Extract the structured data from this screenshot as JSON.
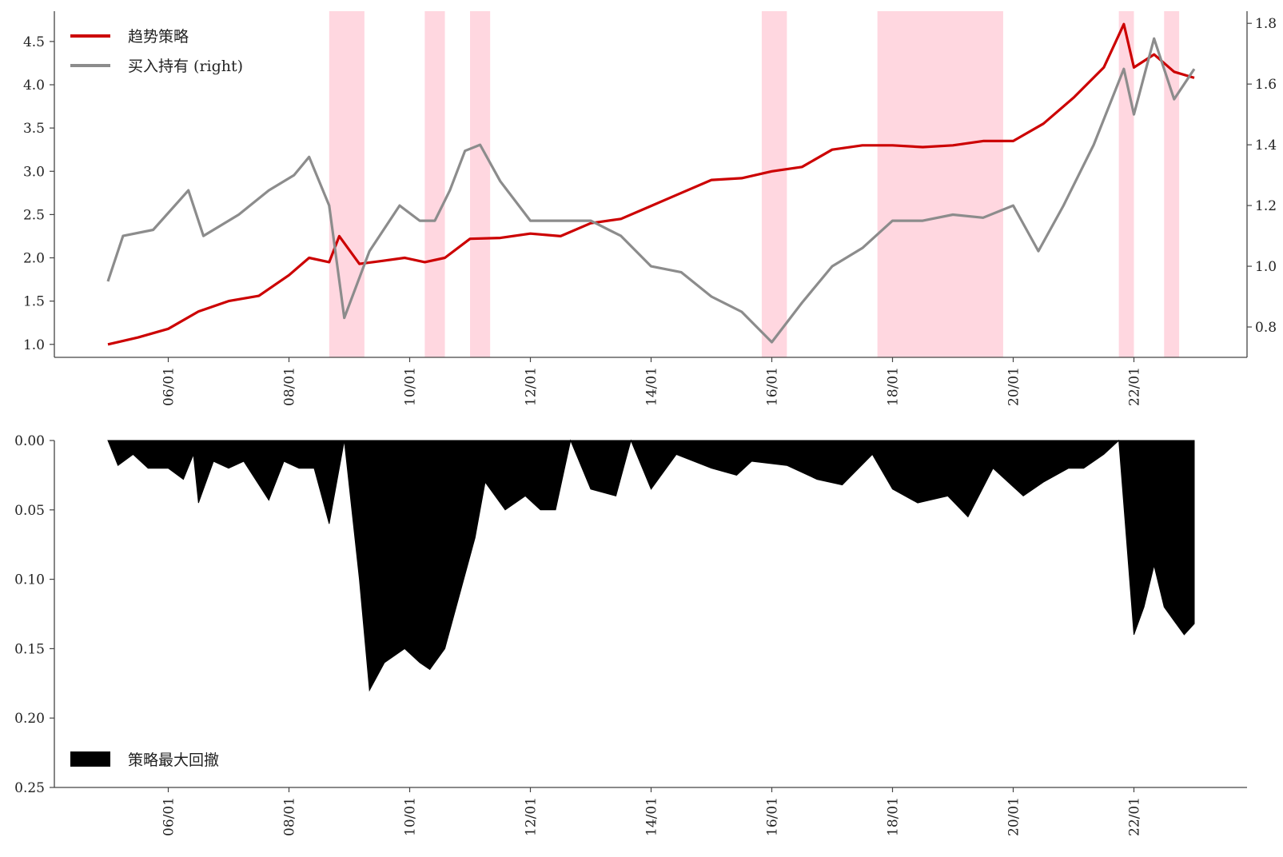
{
  "chart_data": [
    {
      "type": "line",
      "x_ticks": [
        "06/01",
        "08/01",
        "10/01",
        "12/01",
        "14/01",
        "16/01",
        "18/01",
        "20/01",
        "22/01"
      ],
      "yticks_left": [
        "1.0",
        "1.5",
        "2.0",
        "2.5",
        "3.0",
        "3.5",
        "4.0",
        "4.5"
      ],
      "yticks_right": [
        "0.8",
        "1.0",
        "1.2",
        "1.4",
        "1.6",
        "1.8"
      ],
      "ylim_left": [
        0.85,
        4.85
      ],
      "ylim_right": [
        0.7,
        1.84
      ],
      "legend_position": "top-left",
      "shaded_periods": [
        [
          "2008-09",
          "2009-04"
        ],
        [
          "2010-04",
          "2010-08"
        ],
        [
          "2011-01",
          "2011-05"
        ],
        [
          "2015-11",
          "2016-04"
        ],
        [
          "2017-10",
          "2019-11"
        ],
        [
          "2021-10",
          "2022-01"
        ],
        [
          "2022-07",
          "2022-10"
        ]
      ],
      "series": [
        {
          "name": "趋势策略",
          "axis": "left",
          "color": "#cc0000",
          "points": [
            [
              "2005-01",
              1.0
            ],
            [
              "2005-07",
              1.08
            ],
            [
              "2006-01",
              1.18
            ],
            [
              "2006-07",
              1.38
            ],
            [
              "2007-01",
              1.5
            ],
            [
              "2007-07",
              1.56
            ],
            [
              "2008-01",
              1.8
            ],
            [
              "2008-05",
              2.0
            ],
            [
              "2008-09",
              1.95
            ],
            [
              "2008-11",
              2.25
            ],
            [
              "2009-03",
              1.93
            ],
            [
              "2009-07",
              1.96
            ],
            [
              "2009-12",
              2.0
            ],
            [
              "2010-04",
              1.95
            ],
            [
              "2010-08",
              2.0
            ],
            [
              "2011-01",
              2.22
            ],
            [
              "2011-07",
              2.23
            ],
            [
              "2012-01",
              2.28
            ],
            [
              "2012-07",
              2.25
            ],
            [
              "2013-01",
              2.4
            ],
            [
              "2013-07",
              2.45
            ],
            [
              "2014-01",
              2.6
            ],
            [
              "2014-07",
              2.75
            ],
            [
              "2015-01",
              2.9
            ],
            [
              "2015-07",
              2.92
            ],
            [
              "2016-01",
              3.0
            ],
            [
              "2016-07",
              3.05
            ],
            [
              "2017-01",
              3.25
            ],
            [
              "2017-07",
              3.3
            ],
            [
              "2018-01",
              3.3
            ],
            [
              "2018-07",
              3.28
            ],
            [
              "2019-01",
              3.3
            ],
            [
              "2019-07",
              3.35
            ],
            [
              "2020-01",
              3.35
            ],
            [
              "2020-07",
              3.55
            ],
            [
              "2021-01",
              3.85
            ],
            [
              "2021-07",
              4.2
            ],
            [
              "2021-11",
              4.7
            ],
            [
              "2022-01",
              4.2
            ],
            [
              "2022-05",
              4.35
            ],
            [
              "2022-09",
              4.15
            ],
            [
              "2023-01",
              4.08
            ]
          ]
        },
        {
          "name": "买入持有 (right)",
          "axis": "right",
          "color": "#8c8c8c",
          "points": [
            [
              "2005-01",
              0.95
            ],
            [
              "2005-04",
              1.1
            ],
            [
              "2005-10",
              1.12
            ],
            [
              "2006-05",
              1.25
            ],
            [
              "2006-08",
              1.1
            ],
            [
              "2007-03",
              1.17
            ],
            [
              "2007-09",
              1.25
            ],
            [
              "2008-02",
              1.3
            ],
            [
              "2008-05",
              1.36
            ],
            [
              "2008-09",
              1.2
            ],
            [
              "2008-12",
              0.83
            ],
            [
              "2009-05",
              1.05
            ],
            [
              "2009-11",
              1.2
            ],
            [
              "2010-03",
              1.15
            ],
            [
              "2010-06",
              1.15
            ],
            [
              "2010-09",
              1.25
            ],
            [
              "2010-12",
              1.38
            ],
            [
              "2011-03",
              1.4
            ],
            [
              "2011-07",
              1.28
            ],
            [
              "2012-01",
              1.15
            ],
            [
              "2012-07",
              1.15
            ],
            [
              "2013-01",
              1.15
            ],
            [
              "2013-07",
              1.1
            ],
            [
              "2014-01",
              1.0
            ],
            [
              "2014-07",
              0.98
            ],
            [
              "2015-01",
              0.9
            ],
            [
              "2015-07",
              0.85
            ],
            [
              "2016-01",
              0.75
            ],
            [
              "2016-07",
              0.88
            ],
            [
              "2017-01",
              1.0
            ],
            [
              "2017-07",
              1.06
            ],
            [
              "2018-01",
              1.15
            ],
            [
              "2018-07",
              1.15
            ],
            [
              "2019-01",
              1.17
            ],
            [
              "2019-07",
              1.16
            ],
            [
              "2020-01",
              1.2
            ],
            [
              "2020-06",
              1.05
            ],
            [
              "2020-11",
              1.2
            ],
            [
              "2021-05",
              1.4
            ],
            [
              "2021-11",
              1.65
            ],
            [
              "2022-01",
              1.5
            ],
            [
              "2022-05",
              1.75
            ],
            [
              "2022-09",
              1.55
            ],
            [
              "2023-01",
              1.65
            ]
          ]
        }
      ]
    },
    {
      "type": "area",
      "x_ticks": [
        "06/01",
        "08/01",
        "10/01",
        "12/01",
        "14/01",
        "16/01",
        "18/01",
        "20/01",
        "22/01"
      ],
      "yticks": [
        "0.00",
        "0.05",
        "0.10",
        "0.15",
        "0.20",
        "0.25"
      ],
      "ylim": [
        0,
        0.25
      ],
      "y_inverted": true,
      "legend_position": "bottom-left",
      "series": [
        {
          "name": "策略最大回撤",
          "color": "#000000",
          "points": [
            [
              "2005-01",
              0.0
            ],
            [
              "2005-03",
              0.018
            ],
            [
              "2005-06",
              0.01
            ],
            [
              "2005-09",
              0.02
            ],
            [
              "2006-01",
              0.02
            ],
            [
              "2006-04",
              0.028
            ],
            [
              "2006-06",
              0.01
            ],
            [
              "2006-07",
              0.045
            ],
            [
              "2006-10",
              0.015
            ],
            [
              "2007-01",
              0.02
            ],
            [
              "2007-04",
              0.015
            ],
            [
              "2007-09",
              0.043
            ],
            [
              "2007-12",
              0.015
            ],
            [
              "2008-03",
              0.02
            ],
            [
              "2008-06",
              0.02
            ],
            [
              "2008-09",
              0.06
            ],
            [
              "2008-12",
              0.0
            ],
            [
              "2009-03",
              0.1
            ],
            [
              "2009-05",
              0.18
            ],
            [
              "2009-08",
              0.16
            ],
            [
              "2009-12",
              0.15
            ],
            [
              "2010-03",
              0.16
            ],
            [
              "2010-05",
              0.165
            ],
            [
              "2010-08",
              0.15
            ],
            [
              "2010-11",
              0.11
            ],
            [
              "2011-02",
              0.07
            ],
            [
              "2011-04",
              0.03
            ],
            [
              "2011-08",
              0.05
            ],
            [
              "2011-12",
              0.04
            ],
            [
              "2012-03",
              0.05
            ],
            [
              "2012-06",
              0.05
            ],
            [
              "2012-09",
              0.0
            ],
            [
              "2013-01",
              0.035
            ],
            [
              "2013-06",
              0.04
            ],
            [
              "2013-09",
              0.0
            ],
            [
              "2014-01",
              0.035
            ],
            [
              "2014-06",
              0.01
            ],
            [
              "2015-01",
              0.02
            ],
            [
              "2015-06",
              0.025
            ],
            [
              "2015-09",
              0.015
            ],
            [
              "2016-04",
              0.018
            ],
            [
              "2016-10",
              0.028
            ],
            [
              "2017-03",
              0.032
            ],
            [
              "2017-09",
              0.01
            ],
            [
              "2018-01",
              0.035
            ],
            [
              "2018-06",
              0.045
            ],
            [
              "2018-12",
              0.04
            ],
            [
              "2019-04",
              0.055
            ],
            [
              "2019-09",
              0.02
            ],
            [
              "2020-03",
              0.04
            ],
            [
              "2020-07",
              0.03
            ],
            [
              "2020-12",
              0.02
            ],
            [
              "2021-03",
              0.02
            ],
            [
              "2021-07",
              0.01
            ],
            [
              "2021-10",
              0.0
            ],
            [
              "2022-01",
              0.14
            ],
            [
              "2022-03",
              0.12
            ],
            [
              "2022-05",
              0.09
            ],
            [
              "2022-07",
              0.12
            ],
            [
              "2022-09",
              0.13
            ],
            [
              "2022-11",
              0.14
            ],
            [
              "2023-01",
              0.132
            ]
          ]
        }
      ]
    }
  ]
}
